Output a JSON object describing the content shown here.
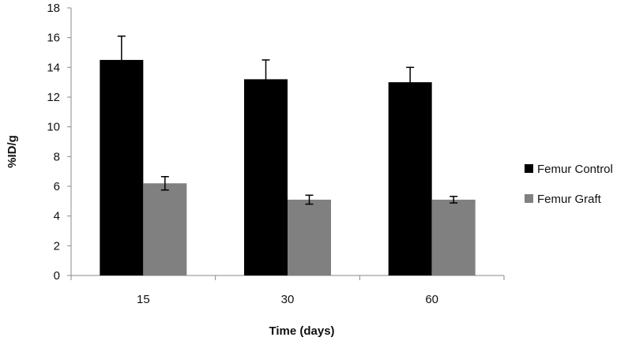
{
  "chart_data": {
    "type": "bar",
    "title": "",
    "xlabel": "Time (days)",
    "ylabel": "%ID/g",
    "categories": [
      "15",
      "30",
      "60"
    ],
    "ylim": [
      0,
      18
    ],
    "yticks": [
      0,
      2,
      4,
      6,
      8,
      10,
      12,
      14,
      16,
      18
    ],
    "grid": false,
    "legend_position": "right",
    "series": [
      {
        "name": "Femur Control",
        "color": "#000000",
        "values": [
          14.5,
          13.2,
          13.0
        ],
        "errors": [
          1.6,
          1.3,
          1.0
        ]
      },
      {
        "name": "Femur Graft",
        "color": "#808080",
        "values": [
          6.2,
          5.1,
          5.1
        ],
        "errors": [
          0.45,
          0.3,
          0.22
        ]
      }
    ]
  }
}
